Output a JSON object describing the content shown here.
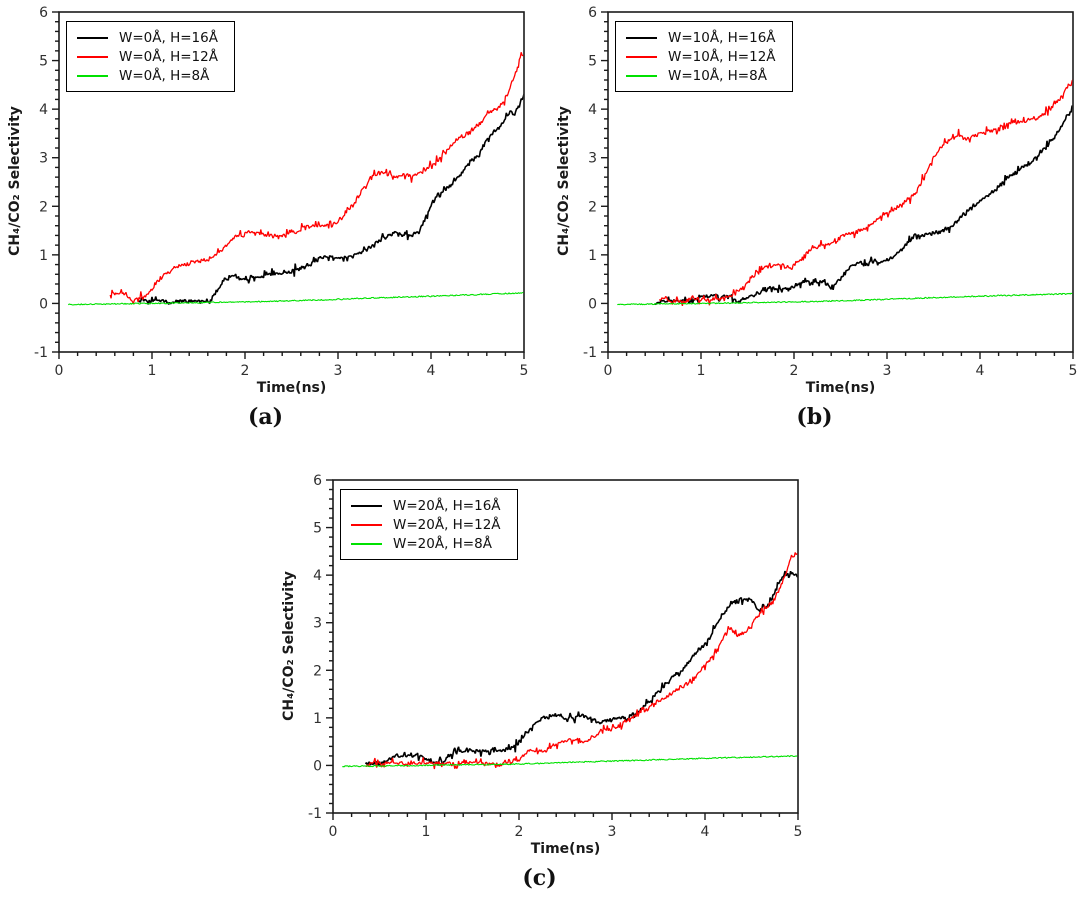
{
  "page": {
    "background": "#ffffff",
    "axis_color": "#1a1a1a",
    "tick_label_color": "#303030"
  },
  "chart_data": [
    {
      "panel_label": "(a)",
      "type": "line",
      "title": "",
      "xlabel": "Time(ns)",
      "ylabel": "CH₄/CO₂ Selectivity",
      "xlim": [
        0,
        5
      ],
      "ylim": [
        -1,
        6
      ],
      "x_major_ticks": [
        0,
        1,
        2,
        3,
        4,
        5
      ],
      "y_major_ticks": [
        -1,
        0,
        1,
        2,
        3,
        4,
        5,
        6
      ],
      "x_minor_step": 0.2,
      "y_minor_step": 0.2,
      "grid": false,
      "legend_position": "top-left",
      "series": [
        {
          "name": "W=0Å, H=16Å",
          "color": "#000000",
          "points": [
            [
              0.85,
              0.03
            ],
            [
              1.0,
              0.05
            ],
            [
              1.2,
              0.02
            ],
            [
              1.45,
              0.05
            ],
            [
              1.62,
              0.05
            ],
            [
              1.7,
              0.25
            ],
            [
              1.78,
              0.5
            ],
            [
              1.88,
              0.55
            ],
            [
              2.0,
              0.5
            ],
            [
              2.1,
              0.55
            ],
            [
              2.3,
              0.6
            ],
            [
              2.5,
              0.65
            ],
            [
              2.7,
              0.8
            ],
            [
              2.8,
              0.95
            ],
            [
              3.1,
              0.95
            ],
            [
              3.2,
              1.0
            ],
            [
              3.3,
              1.1
            ],
            [
              3.45,
              1.3
            ],
            [
              3.6,
              1.45
            ],
            [
              3.75,
              1.4
            ],
            [
              3.87,
              1.45
            ],
            [
              3.95,
              1.8
            ],
            [
              4.05,
              2.2
            ],
            [
              4.15,
              2.35
            ],
            [
              4.25,
              2.5
            ],
            [
              4.35,
              2.75
            ],
            [
              4.45,
              2.95
            ],
            [
              4.55,
              3.2
            ],
            [
              4.65,
              3.5
            ],
            [
              4.72,
              3.6
            ],
            [
              4.8,
              3.8
            ],
            [
              4.85,
              3.95
            ],
            [
              4.9,
              3.9
            ],
            [
              5.0,
              4.3
            ]
          ]
        },
        {
          "name": "W=0Å, H=12Å",
          "color": "#ff0000",
          "points": [
            [
              0.55,
              0.2
            ],
            [
              0.72,
              0.18
            ],
            [
              0.78,
              0.05
            ],
            [
              0.95,
              0.18
            ],
            [
              1.02,
              0.35
            ],
            [
              1.1,
              0.55
            ],
            [
              1.2,
              0.7
            ],
            [
              1.35,
              0.8
            ],
            [
              1.5,
              0.85
            ],
            [
              1.65,
              0.95
            ],
            [
              1.8,
              1.2
            ],
            [
              1.9,
              1.4
            ],
            [
              2.1,
              1.45
            ],
            [
              2.3,
              1.4
            ],
            [
              2.55,
              1.45
            ],
            [
              2.65,
              1.6
            ],
            [
              2.9,
              1.6
            ],
            [
              3.0,
              1.65
            ],
            [
              3.1,
              1.9
            ],
            [
              3.2,
              2.15
            ],
            [
              3.3,
              2.45
            ],
            [
              3.4,
              2.65
            ],
            [
              3.5,
              2.7
            ],
            [
              3.6,
              2.6
            ],
            [
              3.7,
              2.65
            ],
            [
              3.8,
              2.62
            ],
            [
              3.9,
              2.7
            ],
            [
              4.0,
              2.85
            ],
            [
              4.1,
              3.0
            ],
            [
              4.2,
              3.2
            ],
            [
              4.3,
              3.4
            ],
            [
              4.4,
              3.5
            ],
            [
              4.5,
              3.65
            ],
            [
              4.6,
              3.9
            ],
            [
              4.7,
              4.0
            ],
            [
              4.78,
              4.15
            ],
            [
              4.85,
              4.45
            ],
            [
              4.93,
              4.85
            ],
            [
              4.97,
              5.15
            ],
            [
              5.0,
              5.1
            ]
          ]
        },
        {
          "name": "W=0Å, H=8Å",
          "color": "#00e100",
          "points": [
            [
              0.1,
              -0.02
            ],
            [
              1.0,
              0.0
            ],
            [
              2.0,
              0.03
            ],
            [
              2.8,
              0.07
            ],
            [
              3.5,
              0.12
            ],
            [
              4.2,
              0.16
            ],
            [
              5.0,
              0.22
            ]
          ]
        }
      ]
    },
    {
      "panel_label": "(b)",
      "type": "line",
      "title": "",
      "xlabel": "Time(ns)",
      "ylabel": "CH₄/CO₂ Selectivity",
      "xlim": [
        0,
        5
      ],
      "ylim": [
        -1,
        6
      ],
      "x_major_ticks": [
        0,
        1,
        2,
        3,
        4,
        5
      ],
      "y_major_ticks": [
        -1,
        0,
        1,
        2,
        3,
        4,
        5,
        6
      ],
      "x_minor_step": 0.2,
      "y_minor_step": 0.2,
      "grid": false,
      "legend_position": "top-left",
      "series": [
        {
          "name": "W=10Å, H=16Å",
          "color": "#000000",
          "points": [
            [
              0.5,
              0.02
            ],
            [
              0.9,
              0.05
            ],
            [
              1.0,
              0.15
            ],
            [
              1.3,
              0.15
            ],
            [
              1.4,
              0.05
            ],
            [
              1.55,
              0.15
            ],
            [
              1.7,
              0.28
            ],
            [
              2.0,
              0.33
            ],
            [
              2.1,
              0.45
            ],
            [
              2.3,
              0.45
            ],
            [
              2.42,
              0.35
            ],
            [
              2.52,
              0.55
            ],
            [
              2.62,
              0.78
            ],
            [
              2.9,
              0.85
            ],
            [
              3.0,
              0.9
            ],
            [
              3.1,
              1.0
            ],
            [
              3.2,
              1.2
            ],
            [
              3.3,
              1.4
            ],
            [
              3.5,
              1.45
            ],
            [
              3.6,
              1.5
            ],
            [
              3.7,
              1.6
            ],
            [
              3.8,
              1.8
            ],
            [
              3.9,
              1.95
            ],
            [
              4.0,
              2.1
            ],
            [
              4.1,
              2.25
            ],
            [
              4.2,
              2.4
            ],
            [
              4.3,
              2.6
            ],
            [
              4.4,
              2.75
            ],
            [
              4.5,
              2.85
            ],
            [
              4.6,
              3.0
            ],
            [
              4.7,
              3.2
            ],
            [
              4.78,
              3.35
            ],
            [
              4.85,
              3.6
            ],
            [
              4.92,
              3.8
            ],
            [
              5.0,
              4.05
            ]
          ]
        },
        {
          "name": "W=10Å, H=12Å",
          "color": "#ff0000",
          "points": [
            [
              0.55,
              0.1
            ],
            [
              0.75,
              0.05
            ],
            [
              0.95,
              0.1
            ],
            [
              1.1,
              0.05
            ],
            [
              1.25,
              0.12
            ],
            [
              1.38,
              0.22
            ],
            [
              1.48,
              0.38
            ],
            [
              1.58,
              0.6
            ],
            [
              1.68,
              0.75
            ],
            [
              1.85,
              0.8
            ],
            [
              1.95,
              0.75
            ],
            [
              2.05,
              0.85
            ],
            [
              2.15,
              1.1
            ],
            [
              2.3,
              1.2
            ],
            [
              2.42,
              1.25
            ],
            [
              2.52,
              1.4
            ],
            [
              2.65,
              1.45
            ],
            [
              2.78,
              1.55
            ],
            [
              2.9,
              1.75
            ],
            [
              3.0,
              1.85
            ],
            [
              3.1,
              1.95
            ],
            [
              3.2,
              2.1
            ],
            [
              3.3,
              2.25
            ],
            [
              3.4,
              2.6
            ],
            [
              3.5,
              3.0
            ],
            [
              3.6,
              3.25
            ],
            [
              3.7,
              3.4
            ],
            [
              3.78,
              3.5
            ],
            [
              3.85,
              3.4
            ],
            [
              3.95,
              3.45
            ],
            [
              4.1,
              3.55
            ],
            [
              4.25,
              3.65
            ],
            [
              4.4,
              3.72
            ],
            [
              4.55,
              3.8
            ],
            [
              4.65,
              3.85
            ],
            [
              4.75,
              4.0
            ],
            [
              4.85,
              4.2
            ],
            [
              4.95,
              4.5
            ],
            [
              5.0,
              4.6
            ]
          ]
        },
        {
          "name": "W=10Å, H=8Å",
          "color": "#00e100",
          "points": [
            [
              0.1,
              -0.02
            ],
            [
              1.0,
              0.0
            ],
            [
              2.0,
              0.03
            ],
            [
              2.8,
              0.07
            ],
            [
              3.5,
              0.12
            ],
            [
              4.2,
              0.16
            ],
            [
              5.0,
              0.2
            ]
          ]
        }
      ]
    },
    {
      "panel_label": "(c)",
      "type": "line",
      "title": "",
      "xlabel": "Time(ns)",
      "ylabel": "CH₄/CO₂ Selectivity",
      "xlim": [
        0,
        5
      ],
      "ylim": [
        -1,
        6
      ],
      "x_major_ticks": [
        0,
        1,
        2,
        3,
        4,
        5
      ],
      "y_major_ticks": [
        -1,
        0,
        1,
        2,
        3,
        4,
        5,
        6
      ],
      "x_minor_step": 0.2,
      "y_minor_step": 0.2,
      "grid": false,
      "legend_position": "top-left",
      "series": [
        {
          "name": "W=20Å, H=16Å",
          "color": "#000000",
          "points": [
            [
              0.35,
              0.03
            ],
            [
              0.55,
              0.05
            ],
            [
              0.65,
              0.2
            ],
            [
              0.95,
              0.2
            ],
            [
              1.05,
              0.05
            ],
            [
              1.2,
              0.1
            ],
            [
              1.3,
              0.28
            ],
            [
              1.6,
              0.3
            ],
            [
              1.72,
              0.33
            ],
            [
              1.82,
              0.3
            ],
            [
              1.95,
              0.4
            ],
            [
              2.05,
              0.6
            ],
            [
              2.15,
              0.85
            ],
            [
              2.25,
              1.0
            ],
            [
              2.4,
              1.05
            ],
            [
              2.55,
              1.0
            ],
            [
              2.7,
              1.05
            ],
            [
              2.85,
              0.9
            ],
            [
              3.0,
              0.98
            ],
            [
              3.15,
              1.0
            ],
            [
              3.25,
              1.1
            ],
            [
              3.35,
              1.25
            ],
            [
              3.45,
              1.45
            ],
            [
              3.55,
              1.65
            ],
            [
              3.65,
              1.85
            ],
            [
              3.75,
              2.0
            ],
            [
              3.85,
              2.25
            ],
            [
              3.95,
              2.45
            ],
            [
              4.05,
              2.7
            ],
            [
              4.12,
              2.95
            ],
            [
              4.2,
              3.2
            ],
            [
              4.28,
              3.4
            ],
            [
              4.35,
              3.5
            ],
            [
              4.5,
              3.5
            ],
            [
              4.57,
              3.25
            ],
            [
              4.65,
              3.3
            ],
            [
              4.72,
              3.5
            ],
            [
              4.78,
              3.8
            ],
            [
              4.85,
              4.0
            ],
            [
              4.92,
              4.05
            ],
            [
              5.0,
              3.95
            ]
          ]
        },
        {
          "name": "W=20Å, H=12Å",
          "color": "#ff0000",
          "points": [
            [
              0.35,
              0.02
            ],
            [
              0.6,
              0.05
            ],
            [
              0.8,
              0.02
            ],
            [
              1.1,
              0.05
            ],
            [
              1.3,
              0.02
            ],
            [
              1.6,
              0.05
            ],
            [
              1.8,
              0.02
            ],
            [
              2.0,
              0.1
            ],
            [
              2.1,
              0.3
            ],
            [
              2.3,
              0.32
            ],
            [
              2.45,
              0.5
            ],
            [
              2.6,
              0.55
            ],
            [
              2.7,
              0.5
            ],
            [
              2.8,
              0.6
            ],
            [
              2.9,
              0.72
            ],
            [
              3.0,
              0.78
            ],
            [
              3.1,
              0.85
            ],
            [
              3.2,
              1.0
            ],
            [
              3.3,
              1.1
            ],
            [
              3.45,
              1.3
            ],
            [
              3.6,
              1.45
            ],
            [
              3.7,
              1.6
            ],
            [
              3.85,
              1.75
            ],
            [
              3.95,
              2.0
            ],
            [
              4.05,
              2.2
            ],
            [
              4.15,
              2.5
            ],
            [
              4.25,
              2.9
            ],
            [
              4.35,
              2.72
            ],
            [
              4.45,
              2.8
            ],
            [
              4.55,
              3.1
            ],
            [
              4.65,
              3.3
            ],
            [
              4.75,
              3.5
            ],
            [
              4.82,
              3.8
            ],
            [
              4.88,
              4.1
            ],
            [
              4.93,
              4.4
            ],
            [
              5.0,
              4.45
            ]
          ]
        },
        {
          "name": "W=20Å, H=8Å",
          "color": "#00e100",
          "points": [
            [
              0.1,
              -0.02
            ],
            [
              1.0,
              0.0
            ],
            [
              2.0,
              0.03
            ],
            [
              2.8,
              0.08
            ],
            [
              3.5,
              0.12
            ],
            [
              4.2,
              0.16
            ],
            [
              5.0,
              0.2
            ]
          ]
        }
      ]
    }
  ]
}
